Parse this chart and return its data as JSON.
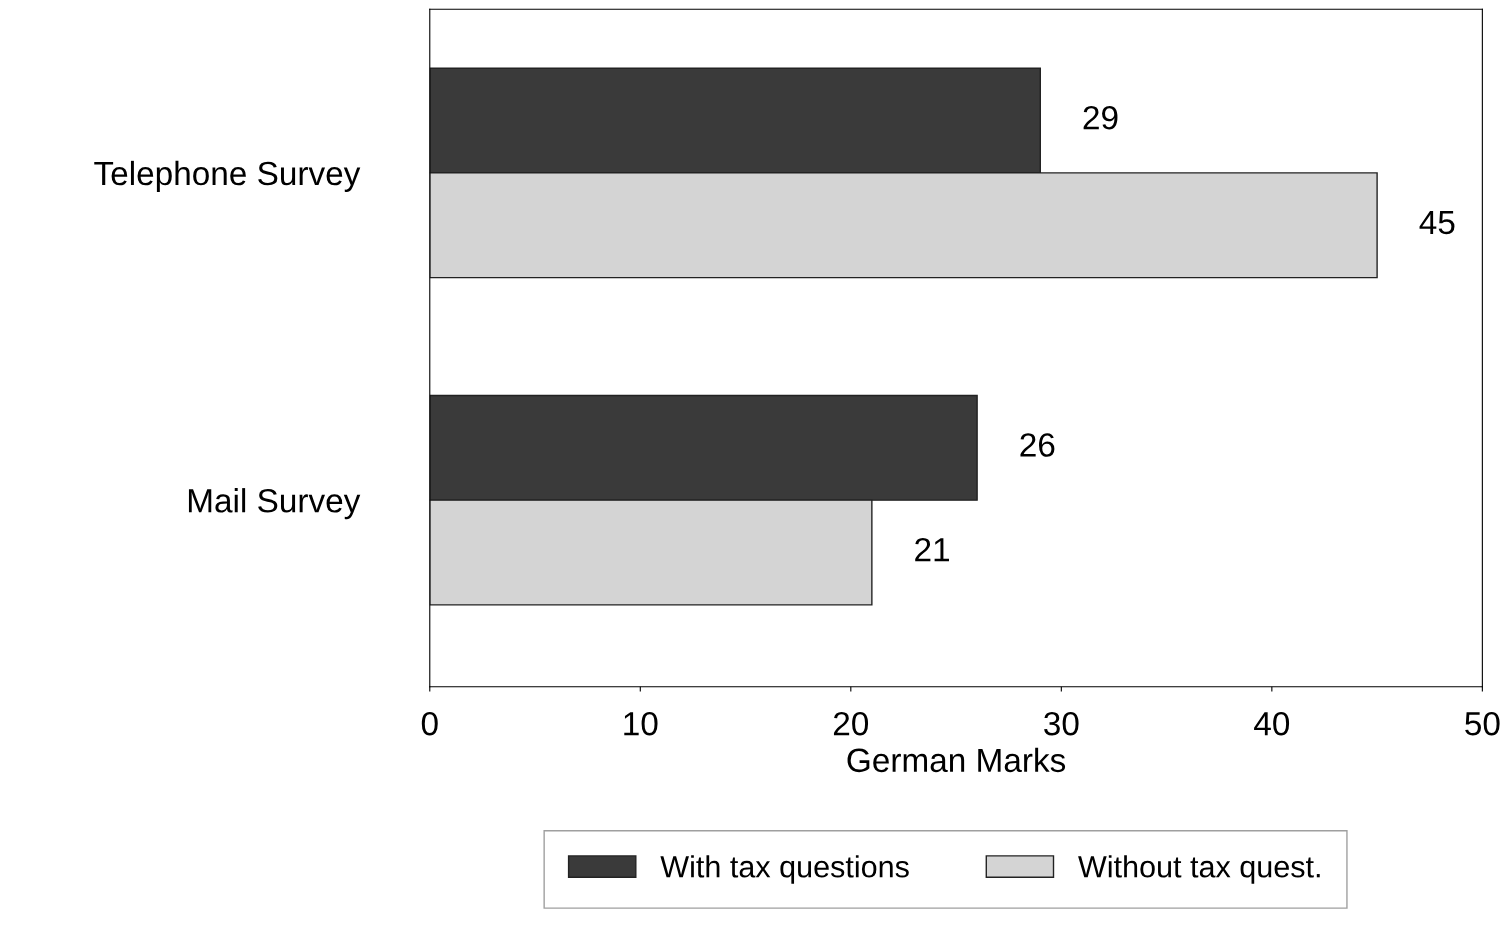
{
  "chart_data": {
    "type": "bar",
    "orientation": "horizontal",
    "xlabel": "German Marks",
    "categories": [
      "Telephone Survey",
      "Mail Survey"
    ],
    "series": [
      {
        "name": "With tax questions",
        "color": "#3a3a3a",
        "values": [
          29,
          26
        ]
      },
      {
        "name": "Without tax quest.",
        "color": "#d4d4d4",
        "values": [
          45,
          21
        ]
      }
    ],
    "xlim": [
      0,
      50
    ],
    "xticks": [
      0,
      10,
      20,
      30,
      40,
      50
    ],
    "data_labels": true,
    "legend": "bottom",
    "grid": false
  }
}
